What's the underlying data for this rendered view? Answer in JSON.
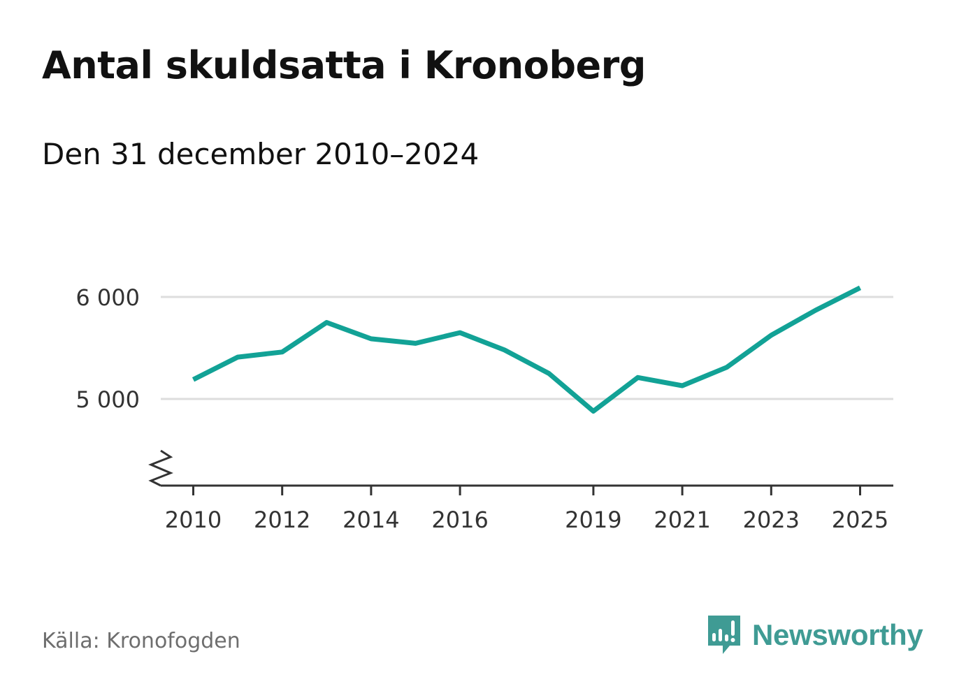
{
  "header": {
    "title": "Antal skuldsatta i Kronoberg",
    "subtitle": "Den 31 december 2010–2024"
  },
  "footer": {
    "source": "Källa: Kronofogden",
    "brand": "Newsworthy"
  },
  "colors": {
    "line": "#12a296",
    "grid": "#dddddd",
    "axis": "#333333",
    "brand": "#3f9b94"
  },
  "chart_data": {
    "type": "line",
    "title": "Antal skuldsatta i Kronoberg",
    "subtitle": "Den 31 december 2010–2024",
    "xlabel": "",
    "ylabel": "",
    "xlim": [
      2009.7,
      2025.8
    ],
    "ylim": [
      4200,
      6200
    ],
    "axis_break": true,
    "grid": true,
    "yticks": [
      {
        "value": 5000,
        "label": "5 000"
      },
      {
        "value": 6000,
        "label": "6 000"
      }
    ],
    "xticks": [
      {
        "value": 2010,
        "label": "2010"
      },
      {
        "value": 2012,
        "label": "2012"
      },
      {
        "value": 2014,
        "label": "2014"
      },
      {
        "value": 2016,
        "label": "2016"
      },
      {
        "value": 2019,
        "label": "2019"
      },
      {
        "value": 2021,
        "label": "2021"
      },
      {
        "value": 2023,
        "label": "2023"
      },
      {
        "value": 2025,
        "label": "2025"
      }
    ],
    "series": [
      {
        "name": "Antal skuldsatta",
        "x": [
          2010,
          2011,
          2012,
          2013,
          2014,
          2015,
          2016,
          2017,
          2018,
          2019,
          2020,
          2021,
          2022,
          2023,
          2024,
          2025
        ],
        "values": [
          5190,
          5410,
          5460,
          5750,
          5590,
          5545,
          5650,
          5480,
          5250,
          4880,
          5210,
          5130,
          5310,
          5625,
          5870,
          6090
        ]
      }
    ]
  }
}
